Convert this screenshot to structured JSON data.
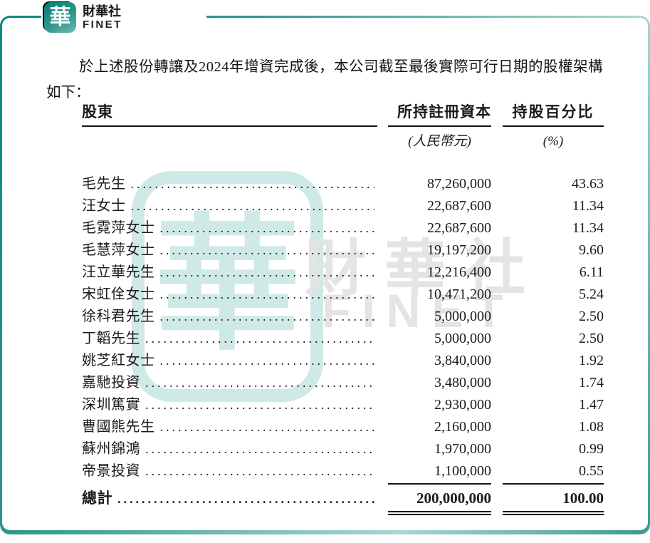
{
  "logo": {
    "mark": "華",
    "name_zh": "財華社",
    "name_en": "FINET"
  },
  "intro": {
    "line1": "於上述股份轉讓及2024年增資完成後，本公司截至最後實際可行日期的股權架構",
    "line2": "如下："
  },
  "table": {
    "col1_header": "股東",
    "col2_header": "所持註冊資本",
    "col2_subheader": "(人民幣元)",
    "col3_header": "持股百分比",
    "col3_subheader": "(%)",
    "rows": [
      {
        "name": "毛先生",
        "capital": "87,260,000",
        "pct": "43.63"
      },
      {
        "name": "汪女士",
        "capital": "22,687,600",
        "pct": "11.34"
      },
      {
        "name": "毛霓萍女士",
        "capital": "22,687,600",
        "pct": "11.34"
      },
      {
        "name": "毛慧萍女士",
        "capital": "19,197,200",
        "pct": "9.60"
      },
      {
        "name": "汪立華先生",
        "capital": "12,216,400",
        "pct": "6.11"
      },
      {
        "name": "宋虹佺女士",
        "capital": "10,471,200",
        "pct": "5.24"
      },
      {
        "name": "徐科君先生",
        "capital": "5,000,000",
        "pct": "2.50"
      },
      {
        "name": "丁韜先生",
        "capital": "5,000,000",
        "pct": "2.50"
      },
      {
        "name": "姚芝紅女士",
        "capital": "3,840,000",
        "pct": "1.92"
      },
      {
        "name": "嘉馳投資",
        "capital": "3,480,000",
        "pct": "1.74"
      },
      {
        "name": "深圳篤實",
        "capital": "2,930,000",
        "pct": "1.47"
      },
      {
        "name": "曹國熊先生",
        "capital": "2,160,000",
        "pct": "1.08"
      },
      {
        "name": "蘇州錦鴻",
        "capital": "1,970,000",
        "pct": "0.99"
      },
      {
        "name": "帝景投資",
        "capital": "1,100,000",
        "pct": "0.55"
      }
    ],
    "total": {
      "name": "總計",
      "capital": "200,000,000",
      "pct": "100.00"
    }
  },
  "watermark": {
    "seal": "華",
    "text_zh": "財華社",
    "text_en": "FINET"
  },
  "colors": {
    "teal_dark": "#0c897f",
    "teal_light": "#a9d6d1",
    "watermark_teal": "#cfe9e7",
    "watermark_gray": "#e4e4e4"
  }
}
